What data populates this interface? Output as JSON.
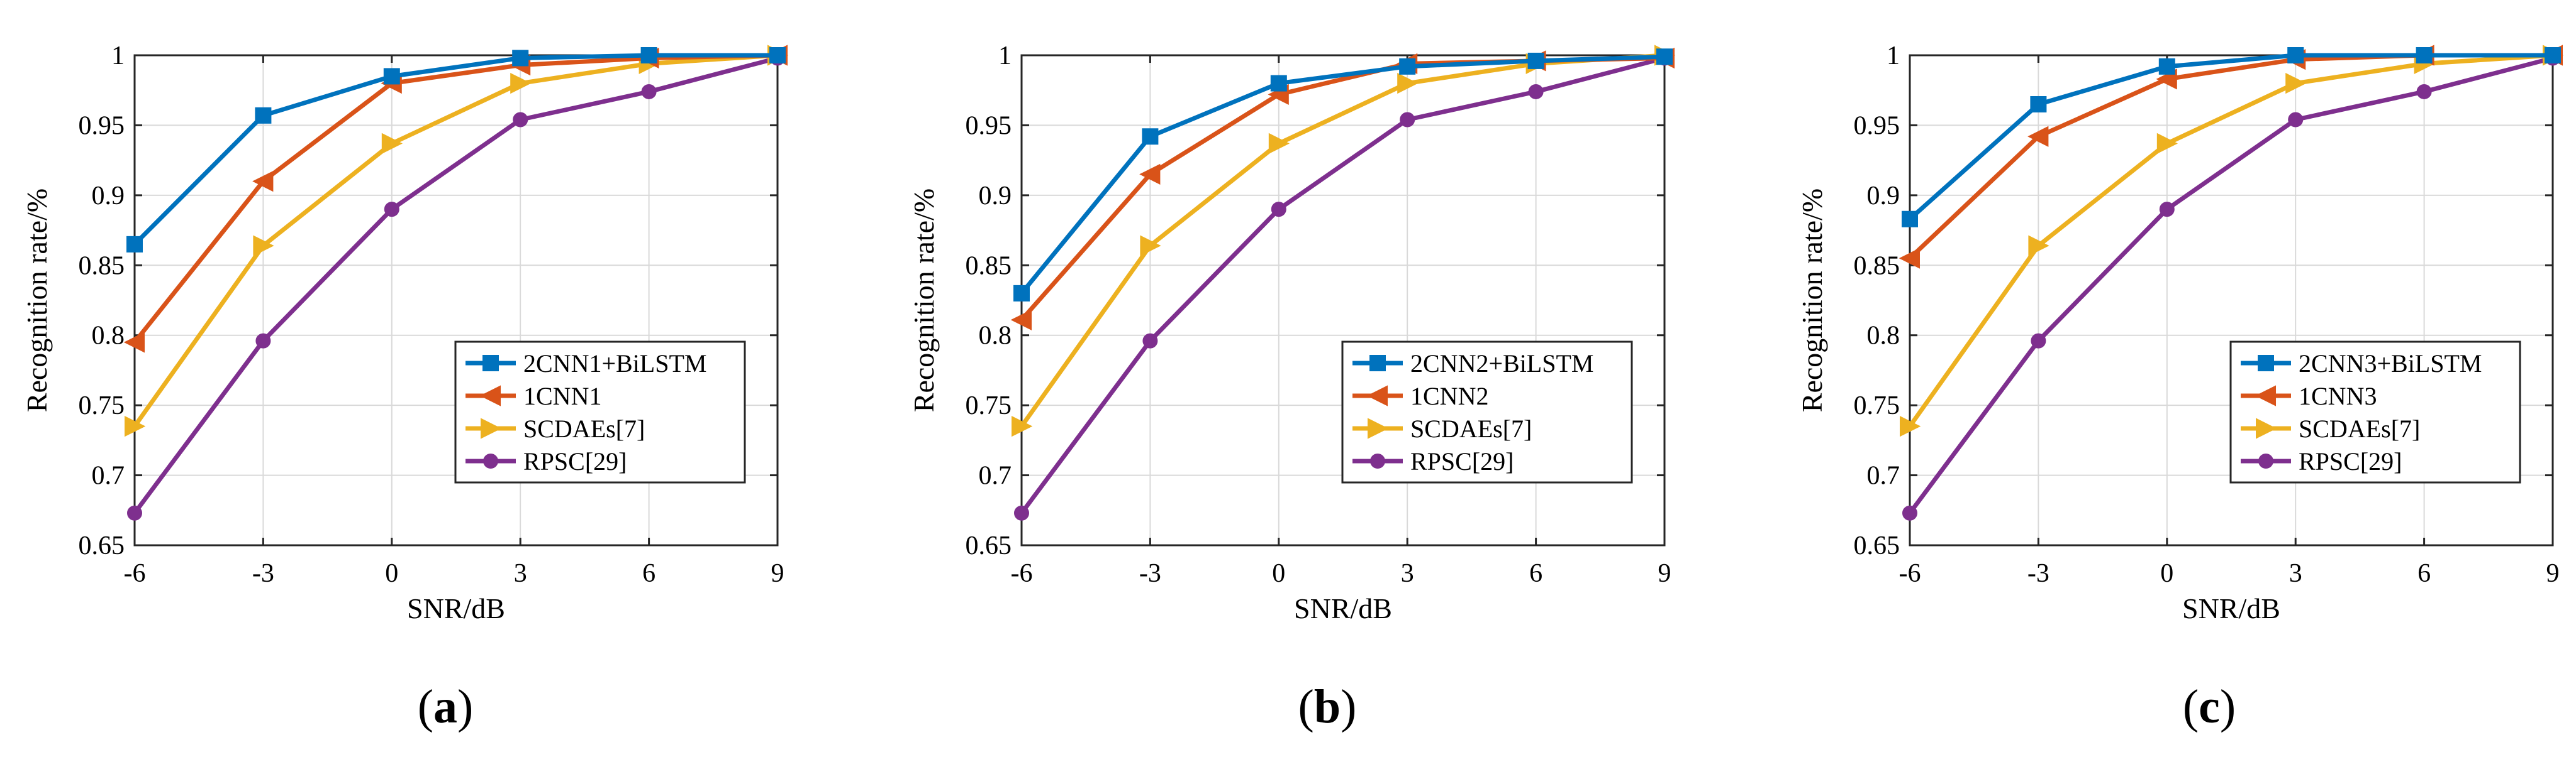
{
  "colors": {
    "blue": "#0072BD",
    "orange": "#D95319",
    "yellow": "#EDB120",
    "purple": "#7E2F8E"
  },
  "panels": [
    {
      "open": "(",
      "letter": "a",
      "close": ")"
    },
    {
      "open": "(",
      "letter": "b",
      "close": ")"
    },
    {
      "open": "(",
      "letter": "c",
      "close": ")"
    }
  ],
  "chart_data": [
    {
      "type": "line",
      "panel": "(a)",
      "xlabel": "SNR/dB",
      "ylabel": "Recognition rate/%",
      "x": [
        -6,
        -3,
        0,
        3,
        6,
        9
      ],
      "xticks": [
        "-6",
        "-3",
        "0",
        "3",
        "6",
        "9"
      ],
      "yticks": [
        "0.65",
        "0.7",
        "0.75",
        "0.8",
        "0.85",
        "0.9",
        "0.95",
        "1"
      ],
      "xlim": [
        -6,
        9
      ],
      "ylim": [
        0.65,
        1.0
      ],
      "legend_position": "lower-right",
      "series": [
        {
          "name": "2CNN1+BiLSTM",
          "marker": "square",
          "color": "#0072BD",
          "values": [
            0.865,
            0.957,
            0.985,
            0.998,
            1.0,
            1.0
          ]
        },
        {
          "name": "1CNN1",
          "marker": "triangle-left",
          "color": "#D95319",
          "values": [
            0.795,
            0.91,
            0.98,
            0.993,
            0.998,
            1.0
          ]
        },
        {
          "name": "SCDAEs[7]",
          "marker": "triangle-right",
          "color": "#EDB120",
          "values": [
            0.735,
            0.864,
            0.937,
            0.98,
            0.994,
            1.0
          ]
        },
        {
          "name": "RPSC[29]",
          "marker": "circle",
          "color": "#7E2F8E",
          "values": [
            0.673,
            0.796,
            0.89,
            0.954,
            0.974,
            0.998
          ]
        }
      ]
    },
    {
      "type": "line",
      "panel": "(b)",
      "xlabel": "SNR/dB",
      "ylabel": "Recognition rate/%",
      "x": [
        -6,
        -3,
        0,
        3,
        6,
        9
      ],
      "xticks": [
        "-6",
        "-3",
        "0",
        "3",
        "6",
        "9"
      ],
      "yticks": [
        "0.65",
        "0.7",
        "0.75",
        "0.8",
        "0.85",
        "0.9",
        "0.95",
        "1"
      ],
      "xlim": [
        -6,
        9
      ],
      "ylim": [
        0.65,
        1.0
      ],
      "legend_position": "lower-right",
      "series": [
        {
          "name": "2CNN2+BiLSTM",
          "marker": "square",
          "color": "#0072BD",
          "values": [
            0.83,
            0.942,
            0.98,
            0.992,
            0.996,
            0.999
          ]
        },
        {
          "name": "1CNN2",
          "marker": "triangle-left",
          "color": "#D95319",
          "values": [
            0.811,
            0.915,
            0.972,
            0.994,
            0.996,
            0.998
          ]
        },
        {
          "name": "SCDAEs[7]",
          "marker": "triangle-right",
          "color": "#EDB120",
          "values": [
            0.735,
            0.864,
            0.937,
            0.98,
            0.994,
            1.0
          ]
        },
        {
          "name": "RPSC[29]",
          "marker": "circle",
          "color": "#7E2F8E",
          "values": [
            0.673,
            0.796,
            0.89,
            0.954,
            0.974,
            0.998
          ]
        }
      ]
    },
    {
      "type": "line",
      "panel": "(c)",
      "xlabel": "SNR/dB",
      "ylabel": "Recognition rate/%",
      "x": [
        -6,
        -3,
        0,
        3,
        6,
        9
      ],
      "xticks": [
        "-6",
        "-3",
        "0",
        "3",
        "6",
        "9"
      ],
      "yticks": [
        "0.65",
        "0.7",
        "0.75",
        "0.8",
        "0.85",
        "0.9",
        "0.95",
        "1"
      ],
      "xlim": [
        -6,
        9
      ],
      "ylim": [
        0.65,
        1.0
      ],
      "legend_position": "lower-right",
      "series": [
        {
          "name": "2CNN3+BiLSTM",
          "marker": "square",
          "color": "#0072BD",
          "values": [
            0.883,
            0.965,
            0.992,
            1.0,
            1.0,
            1.0
          ]
        },
        {
          "name": "1CNN3",
          "marker": "triangle-left",
          "color": "#D95319",
          "values": [
            0.855,
            0.942,
            0.983,
            0.997,
            1.0,
            1.0
          ]
        },
        {
          "name": "SCDAEs[7]",
          "marker": "triangle-right",
          "color": "#EDB120",
          "values": [
            0.735,
            0.864,
            0.937,
            0.98,
            0.994,
            1.0
          ]
        },
        {
          "name": "RPSC[29]",
          "marker": "circle",
          "color": "#7E2F8E",
          "values": [
            0.673,
            0.796,
            0.89,
            0.954,
            0.974,
            0.998
          ]
        }
      ]
    }
  ]
}
